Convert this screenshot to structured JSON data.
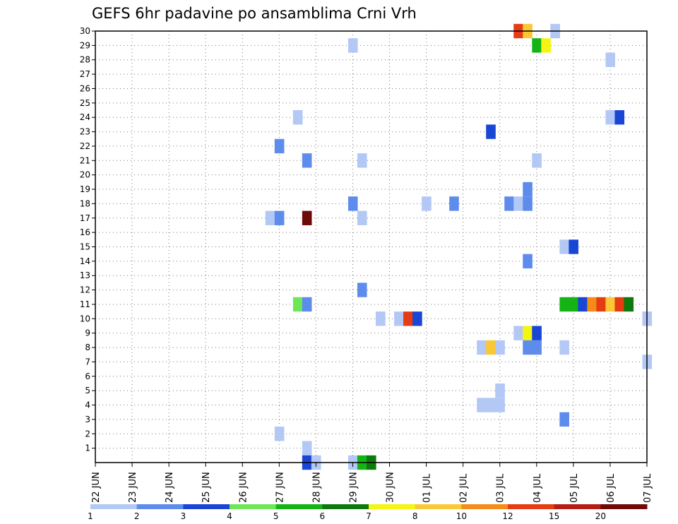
{
  "chart_data": {
    "type": "heatmap",
    "title": "GEFS 6hr padavine po ansamblima Crni Vrh",
    "xlabel": "",
    "ylabel": "",
    "x_tick_labels": [
      "22 JUN",
      "23 JUN",
      "24 JUN",
      "25 JUN",
      "26 JUN",
      "27 JUN",
      "28 JUN",
      "29 JUN",
      "30 JUN",
      "01 JUL",
      "02 JUL",
      "03 JUL",
      "04 JUL",
      "05 JUL",
      "06 JUL",
      "07 JUL"
    ],
    "y_tick_labels": [
      "1",
      "2",
      "3",
      "4",
      "5",
      "6",
      "7",
      "8",
      "9",
      "10",
      "11",
      "12",
      "13",
      "14",
      "15",
      "16",
      "17",
      "18",
      "19",
      "20",
      "21",
      "22",
      "23",
      "24",
      "25",
      "26",
      "27",
      "28",
      "29",
      "30"
    ],
    "xlim": [
      0,
      60
    ],
    "ylim": [
      0,
      30
    ],
    "x_unit": "6-hour steps from 22 JUN 00Z",
    "grid": true,
    "color_levels": [
      1,
      2,
      3,
      4,
      5,
      6,
      7,
      8,
      10,
      12,
      15,
      20
    ],
    "color_scale": [
      "#b3c8f5",
      "#5e8ced",
      "#1a46d6",
      "#6ee65a",
      "#14b414",
      "#0e7a0e",
      "#f5f514",
      "#fac837",
      "#f58c19",
      "#e63c14",
      "#b41e14",
      "#6e0a0a"
    ],
    "cells": [
      {
        "t": 46,
        "m": 30,
        "c": 9
      },
      {
        "t": 47,
        "m": 30,
        "c": 7
      },
      {
        "t": 50,
        "m": 30,
        "c": 0
      },
      {
        "t": 28,
        "m": 29,
        "c": 0
      },
      {
        "t": 48,
        "m": 29,
        "c": 4
      },
      {
        "t": 49,
        "m": 29,
        "c": 6
      },
      {
        "t": 56,
        "m": 28,
        "c": 0
      },
      {
        "t": 22,
        "m": 24,
        "c": 0
      },
      {
        "t": 56,
        "m": 24,
        "c": 0
      },
      {
        "t": 57,
        "m": 24,
        "c": 2
      },
      {
        "t": 43,
        "m": 23,
        "c": 2
      },
      {
        "t": 20,
        "m": 22,
        "c": 1
      },
      {
        "t": 23,
        "m": 21,
        "c": 1
      },
      {
        "t": 29,
        "m": 21,
        "c": 0
      },
      {
        "t": 48,
        "m": 21,
        "c": 0
      },
      {
        "t": 47,
        "m": 19,
        "c": 1
      },
      {
        "t": 28,
        "m": 18,
        "c": 1
      },
      {
        "t": 36,
        "m": 18,
        "c": 0
      },
      {
        "t": 39,
        "m": 18,
        "c": 1
      },
      {
        "t": 45,
        "m": 18,
        "c": 1
      },
      {
        "t": 46,
        "m": 18,
        "c": 0
      },
      {
        "t": 47,
        "m": 18,
        "c": 1
      },
      {
        "t": 19,
        "m": 17,
        "c": 0
      },
      {
        "t": 20,
        "m": 17,
        "c": 1
      },
      {
        "t": 23,
        "m": 17,
        "c": 11
      },
      {
        "t": 29,
        "m": 17,
        "c": 0
      },
      {
        "t": 51,
        "m": 15,
        "c": 0
      },
      {
        "t": 52,
        "m": 15,
        "c": 2
      },
      {
        "t": 47,
        "m": 14,
        "c": 1
      },
      {
        "t": 29,
        "m": 12,
        "c": 1
      },
      {
        "t": 22,
        "m": 11,
        "c": 3
      },
      {
        "t": 23,
        "m": 11,
        "c": 1
      },
      {
        "t": 51,
        "m": 11,
        "c": 4
      },
      {
        "t": 52,
        "m": 11,
        "c": 4
      },
      {
        "t": 53,
        "m": 11,
        "c": 2
      },
      {
        "t": 54,
        "m": 11,
        "c": 8
      },
      {
        "t": 55,
        "m": 11,
        "c": 9
      },
      {
        "t": 56,
        "m": 11,
        "c": 7
      },
      {
        "t": 57,
        "m": 11,
        "c": 9
      },
      {
        "t": 58,
        "m": 11,
        "c": 5
      },
      {
        "t": 31,
        "m": 10,
        "c": 0
      },
      {
        "t": 33,
        "m": 10,
        "c": 0
      },
      {
        "t": 34,
        "m": 10,
        "c": 9
      },
      {
        "t": 35,
        "m": 10,
        "c": 2
      },
      {
        "t": 60,
        "m": 10,
        "c": 0
      },
      {
        "t": 46,
        "m": 9,
        "c": 0
      },
      {
        "t": 47,
        "m": 9,
        "c": 6
      },
      {
        "t": 48,
        "m": 9,
        "c": 2
      },
      {
        "t": 42,
        "m": 8,
        "c": 0
      },
      {
        "t": 43,
        "m": 8,
        "c": 7
      },
      {
        "t": 44,
        "m": 8,
        "c": 0
      },
      {
        "t": 47,
        "m": 8,
        "c": 1
      },
      {
        "t": 48,
        "m": 8,
        "c": 1
      },
      {
        "t": 51,
        "m": 8,
        "c": 0
      },
      {
        "t": 60,
        "m": 7,
        "c": 0
      },
      {
        "t": 44,
        "m": 5,
        "c": 0
      },
      {
        "t": 42,
        "m": 4,
        "c": 0
      },
      {
        "t": 43,
        "m": 4,
        "c": 0
      },
      {
        "t": 44,
        "m": 4,
        "c": 0
      },
      {
        "t": 51,
        "m": 3,
        "c": 1
      },
      {
        "t": 20,
        "m": 2,
        "c": 0
      },
      {
        "t": 23,
        "m": 1,
        "c": 0
      },
      {
        "t": 23,
        "m": 0,
        "c": 2
      },
      {
        "t": 24,
        "m": 0,
        "c": 0
      },
      {
        "t": 28,
        "m": 0,
        "c": 0
      },
      {
        "t": 29,
        "m": 0,
        "c": 4
      },
      {
        "t": 30,
        "m": 0,
        "c": 5
      }
    ]
  }
}
